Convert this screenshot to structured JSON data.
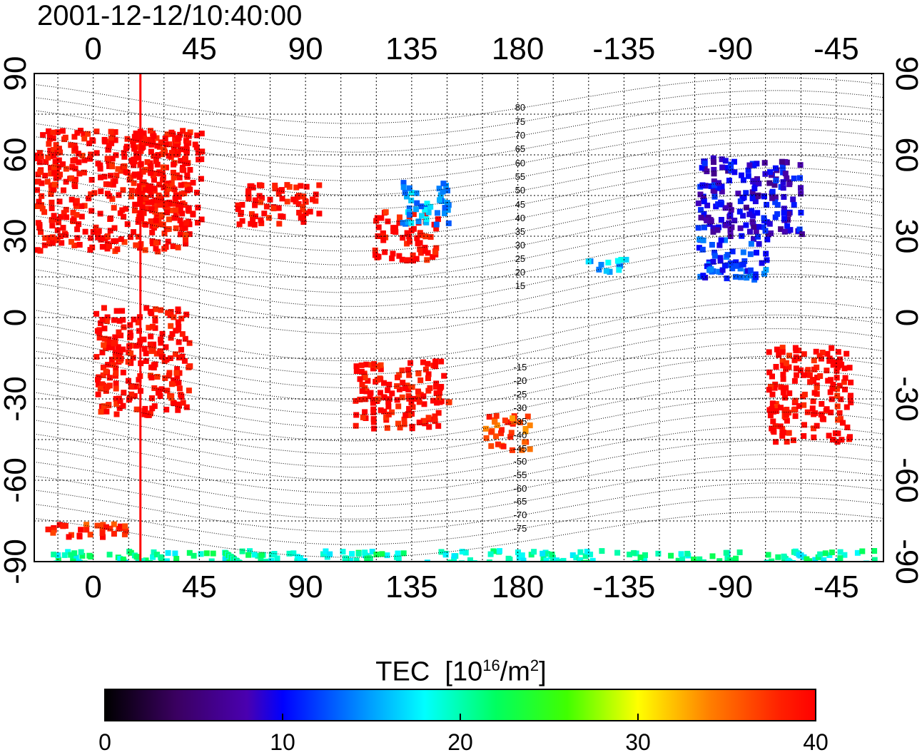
{
  "title": "2001-12-12/10:40:00",
  "lon_ticks": [
    "0",
    "45",
    "90",
    "135",
    "180",
    "-135",
    "-90",
    "-45"
  ],
  "lat_ticks": [
    "90",
    "60",
    "30",
    "0",
    "-30",
    "-60",
    "-90"
  ],
  "mlat_labels": [
    "80",
    "75",
    "70",
    "65",
    "60",
    "55",
    "50",
    "45",
    "40",
    "35",
    "30",
    "25",
    "20",
    "15",
    "-15",
    "-20",
    "-25",
    "-30",
    "-35",
    "-40",
    "-45",
    "-50",
    "-55",
    "-60",
    "-65",
    "-70",
    "-75"
  ],
  "colorbar": {
    "title": "TEC",
    "unit_prefix": "[10",
    "unit_exp1": "16",
    "unit_mid": "/m",
    "unit_exp2": "2",
    "unit_suffix": "]",
    "ticks": [
      "0",
      "10",
      "20",
      "30",
      "40"
    ],
    "range": [
      0,
      40
    ],
    "colors": [
      "#000000",
      "#4a0090",
      "#0000ff",
      "#00ffff",
      "#00ff00",
      "#ffff00",
      "#ff8000",
      "#ff0000"
    ]
  },
  "map": {
    "lon_range": [
      -25,
      335
    ],
    "lat_range": [
      -90,
      90
    ],
    "grid": true,
    "terminator_longitude": 20,
    "terminator_color": "#ff0000"
  },
  "chart_data": {
    "type": "heatmap",
    "title": "2001-12-12/10:40:00",
    "x_label": "",
    "y_label": "",
    "value_label": "TEC [10^16/m^2]",
    "value_range": [
      0,
      40
    ],
    "regions": [
      {
        "lon": [
          -25,
          40
        ],
        "lat": [
          25,
          70
        ],
        "tec": 40
      },
      {
        "lon": [
          15,
          45
        ],
        "lat": [
          35,
          70
        ],
        "tec": 40
      },
      {
        "lon": [
          60,
          95
        ],
        "lat": [
          35,
          50
        ],
        "tec": 40
      },
      {
        "lon": [
          118,
          145
        ],
        "lat": [
          22,
          40
        ],
        "tec": 40
      },
      {
        "lon": [
          130,
          150
        ],
        "lat": [
          35,
          52
        ],
        "tec": 15
      },
      {
        "lon": [
          255,
          300
        ],
        "lat": [
          30,
          60
        ],
        "tec": 9
      },
      {
        "lon": [
          255,
          285
        ],
        "lat": [
          15,
          30
        ],
        "tec": 12
      },
      {
        "lon": [
          208,
          225
        ],
        "lat": [
          17,
          23
        ],
        "tec": 16
      },
      {
        "lon": [
          285,
          320
        ],
        "lat": [
          -45,
          -10
        ],
        "tec": 40
      },
      {
        "lon": [
          110,
          150
        ],
        "lat": [
          -40,
          -15
        ],
        "tec": 40
      },
      {
        "lon": [
          165,
          185
        ],
        "lat": [
          -48,
          -35
        ],
        "tec": 36
      },
      {
        "lon": [
          0,
          40
        ],
        "lat": [
          -35,
          5
        ],
        "tec": 40
      },
      {
        "lon": [
          -25,
          335
        ],
        "lat": [
          -90,
          -85
        ],
        "tec": 20
      },
      {
        "lon": [
          -25,
          20
        ],
        "lat": [
          -80,
          -75
        ],
        "tec": 38
      }
    ]
  }
}
